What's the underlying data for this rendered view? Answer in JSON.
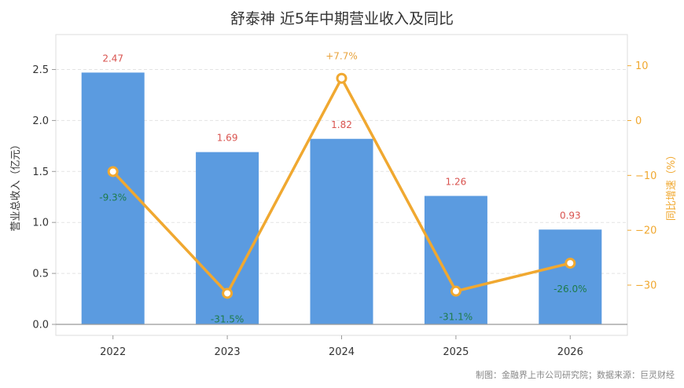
{
  "chart_data": {
    "type": "bar",
    "title": "舒泰神 近5年中期营业收入及同比",
    "categories": [
      "2022",
      "2023",
      "2024",
      "2025",
      "2026"
    ],
    "series": [
      {
        "name": "营业总收入（亿元）",
        "type": "bar",
        "axis": "left",
        "color": "#5b9be0",
        "values": [
          2.47,
          1.69,
          1.82,
          1.26,
          0.93
        ],
        "labels": [
          "2.47",
          "1.69",
          "1.82",
          "1.26",
          "0.93"
        ]
      },
      {
        "name": "同比增速（%）",
        "type": "line",
        "axis": "right",
        "color": "#f0a830",
        "values": [
          -9.3,
          -31.5,
          7.7,
          -31.1,
          -26.0
        ],
        "labels": [
          "-9.3%",
          "-31.5%",
          "+7.7%",
          "-31.1%",
          "-26.0%"
        ]
      }
    ],
    "ylabel": "营业总收入（亿元）",
    "ylabel_right": "同比增速（%）",
    "ylim": [
      0,
      2.8
    ],
    "yticks": [
      "0.0",
      "0.5",
      "1.0",
      "1.5",
      "2.0",
      "2.5"
    ],
    "ylim_right": [
      -37.5,
      15.5
    ],
    "yticks_right": [
      "10",
      "0",
      "−10",
      "−20",
      "−30"
    ],
    "grid": true,
    "label_colors": {
      "positive": "#e8a33d",
      "negative": "#1e7b4a"
    }
  },
  "footer": "制图：金融界上市公司研究院；数据来源：巨灵财经"
}
